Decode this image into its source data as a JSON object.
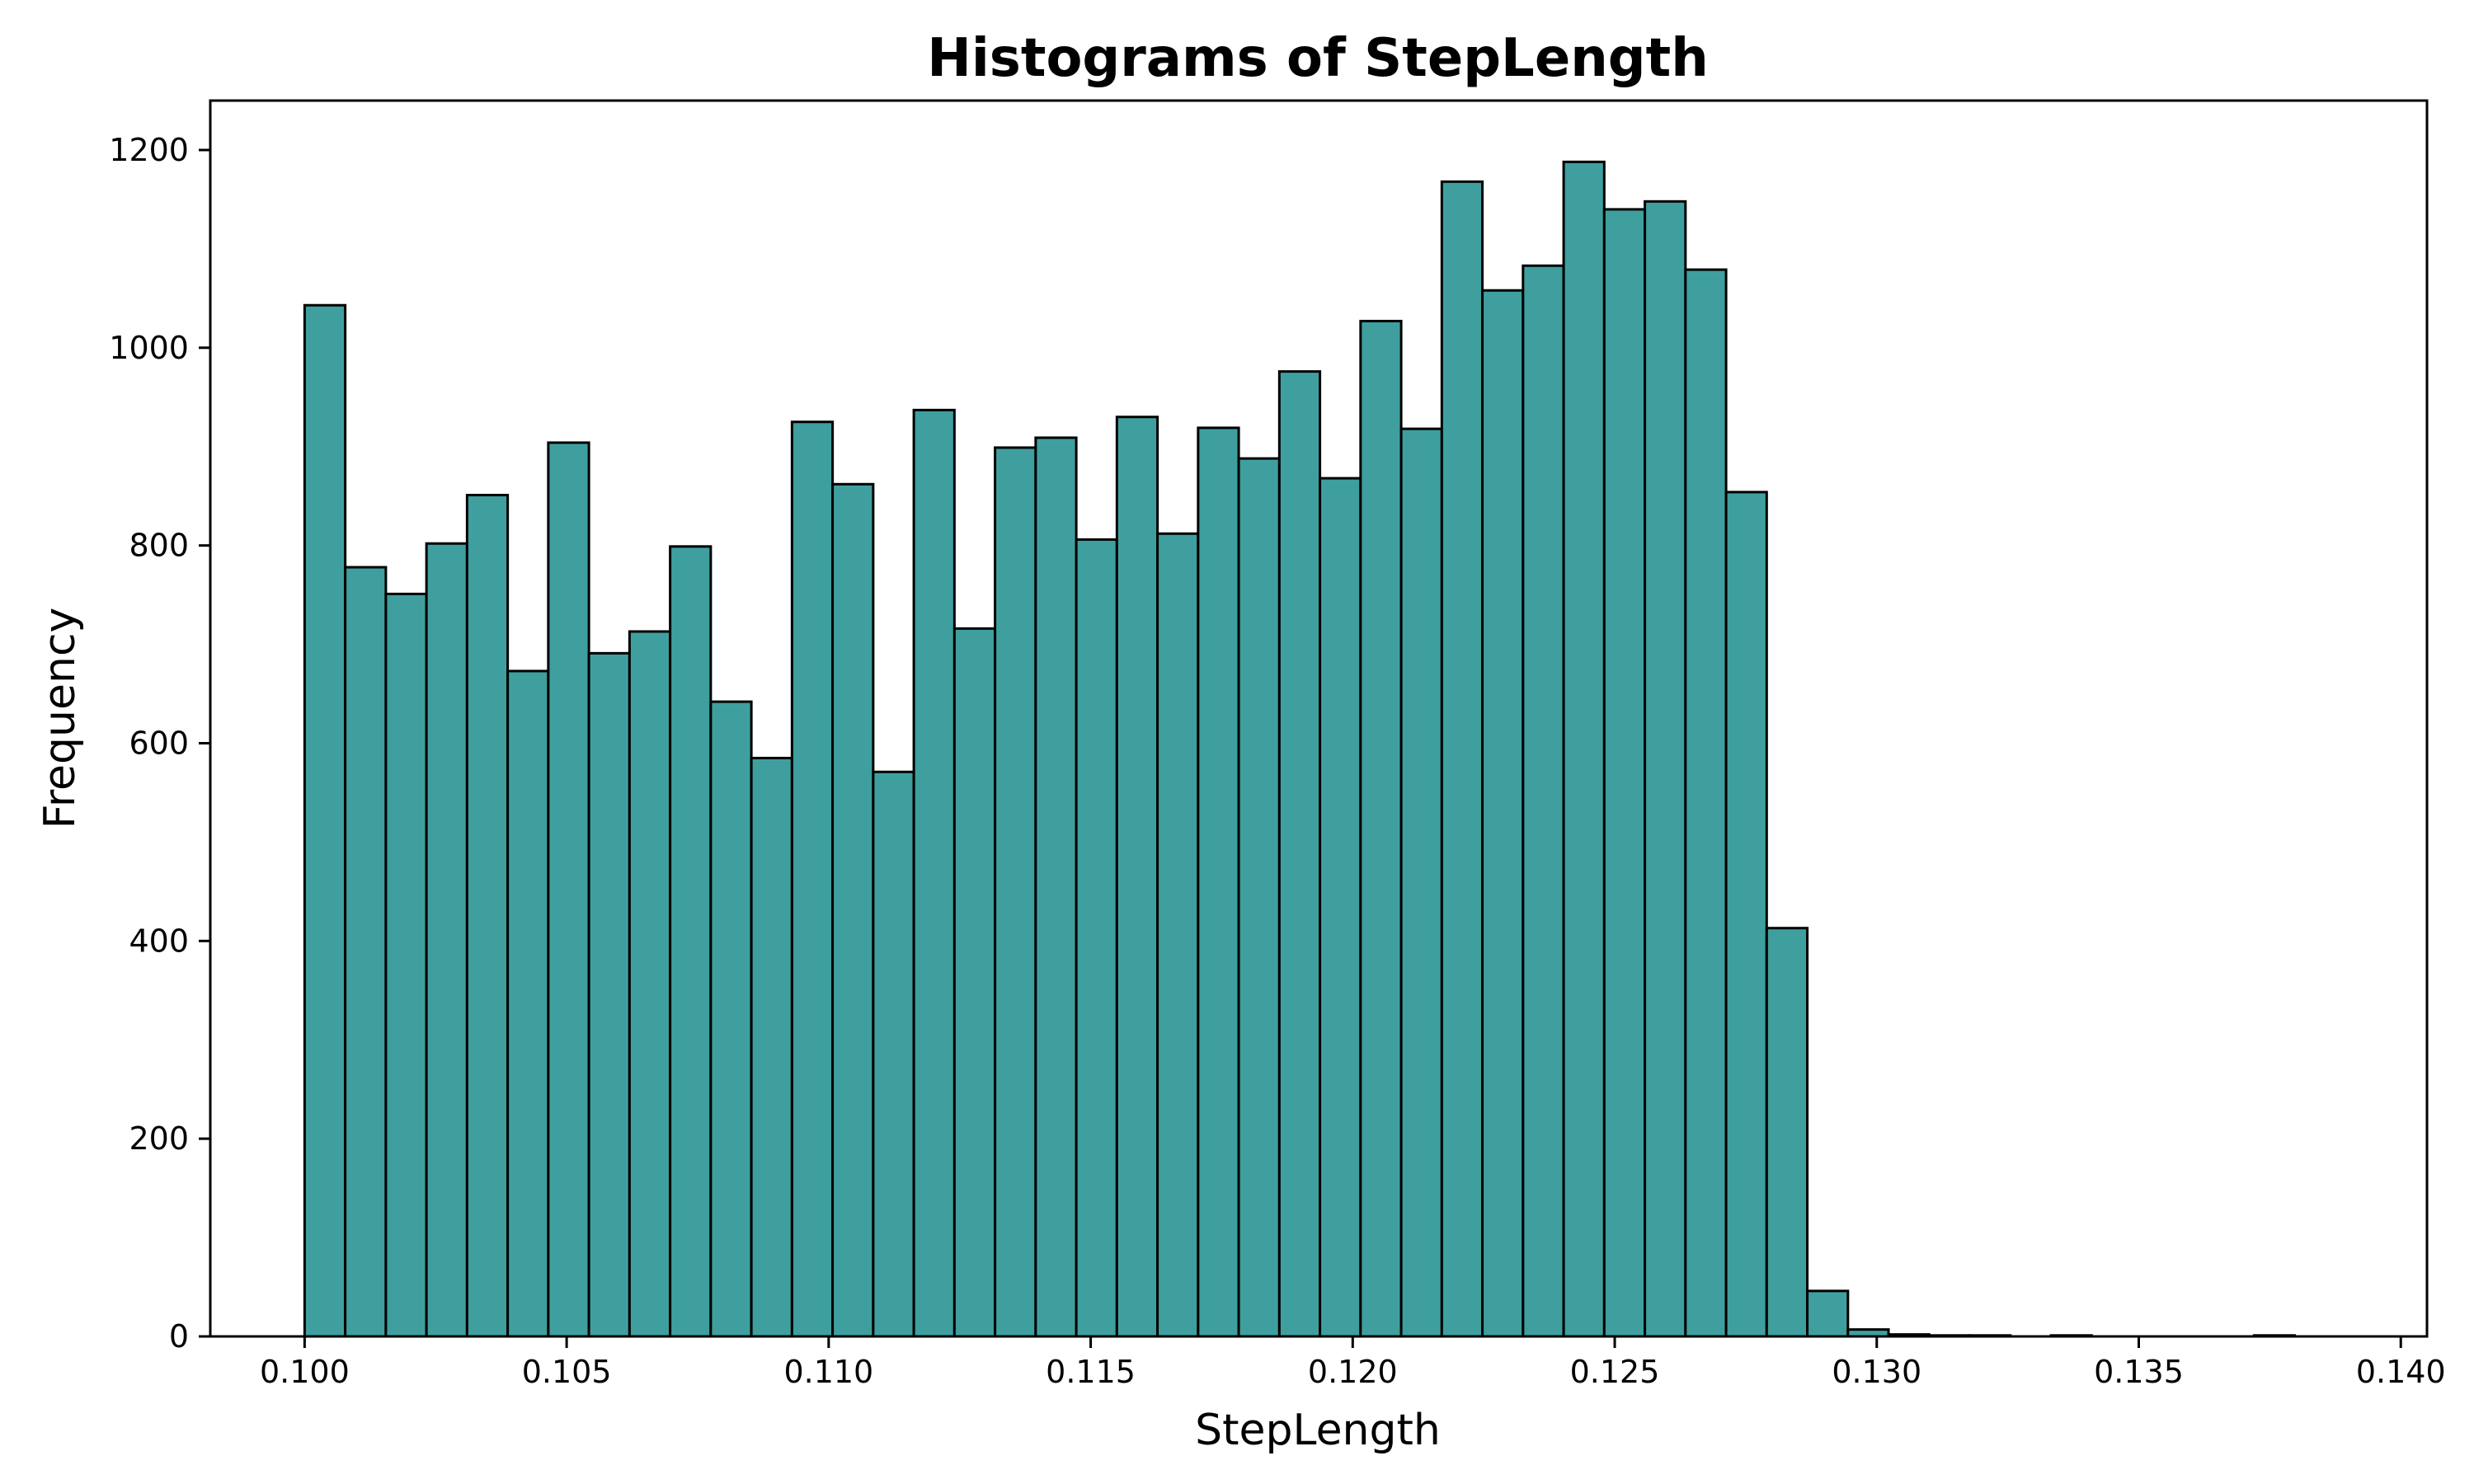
{
  "chart_data": {
    "type": "bar",
    "title": "Histograms of StepLength",
    "xlabel": "StepLength",
    "ylabel": "Frequency",
    "xlim": [
      0.0982,
      0.1405
    ],
    "ylim": [
      0,
      1250
    ],
    "grid": false,
    "bar_color": "#3f9f9f",
    "edge_color": "#000000",
    "bin_start": 0.1,
    "bin_width": 0.000775,
    "counts": [
      1043,
      778,
      751,
      802,
      851,
      673,
      904,
      691,
      713,
      799,
      642,
      585,
      925,
      862,
      571,
      937,
      716,
      899,
      909,
      806,
      930,
      812,
      919,
      888,
      976,
      868,
      1027,
      918,
      1168,
      1058,
      1083,
      1188,
      1140,
      1148,
      1079,
      854,
      413,
      46,
      7,
      2,
      1,
      1,
      0,
      1,
      0,
      0,
      0,
      0,
      1,
      0
    ],
    "x_ticks": [
      0.1,
      0.105,
      0.11,
      0.115,
      0.12,
      0.125,
      0.13,
      0.135,
      0.14
    ],
    "x_tick_labels": [
      "0.100",
      "0.105",
      "0.110",
      "0.115",
      "0.120",
      "0.125",
      "0.130",
      "0.135",
      "0.140"
    ],
    "y_ticks": [
      0,
      200,
      400,
      600,
      800,
      1000,
      1200
    ],
    "y_tick_labels": [
      "0",
      "200",
      "400",
      "600",
      "800",
      "1000",
      "1200"
    ]
  }
}
